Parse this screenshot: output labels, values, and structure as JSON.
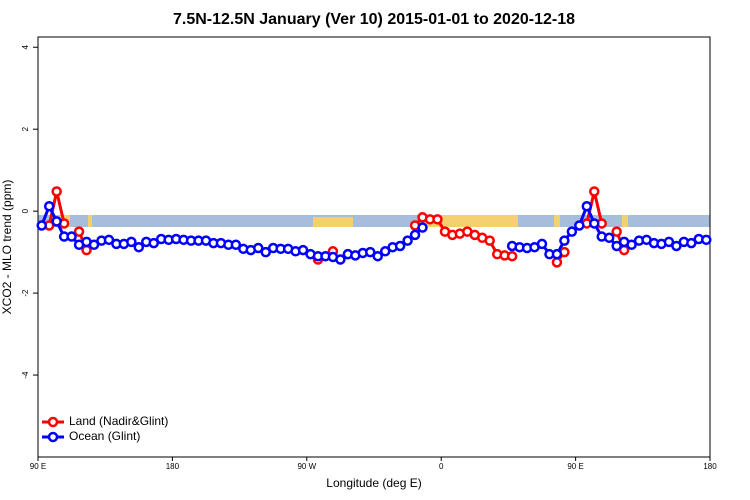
{
  "chart_data": {
    "type": "line",
    "title": "7.5N-12.5N January (Ver 10)   2015-01-01 to 2020-12-18",
    "x_label": "Longitude (deg E)",
    "y_label": "XCO2 - MLO trend (ppm)",
    "x": [
      92.5,
      97.5,
      102.5,
      107.5,
      112.5,
      117.5,
      122.5,
      127.5,
      132.5,
      137.5,
      142.5,
      147.5,
      152.5,
      157.5,
      162.5,
      167.5,
      172.5,
      177.5,
      182.5,
      187.5,
      192.5,
      197.5,
      202.5,
      207.5,
      212.5,
      217.5,
      222.5,
      227.5,
      232.5,
      237.5,
      242.5,
      247.5,
      252.5,
      257.5,
      262.5,
      267.5,
      272.5,
      277.5,
      282.5,
      287.5,
      292.5,
      297.5,
      302.5,
      307.5,
      312.5,
      317.5,
      322.5,
      327.5,
      332.5,
      337.5,
      342.5,
      347.5,
      352.5,
      357.5,
      362.5,
      367.5,
      372.5,
      377.5,
      382.5,
      387.5,
      392.5,
      397.5,
      402.5,
      407.5,
      412.5,
      417.5,
      422.5,
      427.5,
      432.5,
      437.5,
      442.5,
      447.5,
      452.5,
      457.5,
      462.5,
      467.5,
      472.5,
      477.5,
      482.5,
      487.5,
      492.5,
      497.5,
      502.5,
      507.5,
      512.5,
      517.5,
      522.5,
      527.5,
      532.5,
      537.5
    ],
    "series": [
      {
        "name": "Land (Nadir&Glint)",
        "color": "#ff0000",
        "values": [
          null,
          -0.35,
          0.48,
          -0.3,
          null,
          -0.5,
          -0.95,
          null,
          null,
          null,
          null,
          null,
          null,
          null,
          null,
          null,
          null,
          null,
          null,
          null,
          null,
          null,
          null,
          null,
          null,
          null,
          null,
          null,
          null,
          null,
          null,
          null,
          null,
          null,
          null,
          null,
          null,
          -1.18,
          null,
          -0.98,
          null,
          -1.05,
          null,
          null,
          null,
          null,
          null,
          null,
          null,
          null,
          -0.35,
          -0.15,
          -0.2,
          -0.2,
          -0.5,
          -0.58,
          -0.55,
          -0.5,
          -0.58,
          -0.65,
          -0.72,
          -1.05,
          -1.08,
          -1.1,
          null,
          null,
          null,
          null,
          null,
          -1.25,
          -1.0,
          null,
          null,
          -0.3,
          0.48,
          -0.3,
          null,
          -0.5,
          -0.95,
          null,
          null,
          null,
          null,
          null,
          null,
          null,
          null,
          null,
          null,
          null
        ]
      },
      {
        "name": "Ocean (Glint)",
        "color": "#0000ff",
        "values": [
          -0.35,
          0.12,
          -0.25,
          -0.62,
          -0.62,
          -0.82,
          -0.75,
          -0.82,
          -0.72,
          -0.7,
          -0.8,
          -0.8,
          -0.75,
          -0.88,
          -0.75,
          -0.78,
          -0.68,
          -0.7,
          -0.68,
          -0.7,
          -0.72,
          -0.72,
          -0.72,
          -0.78,
          -0.78,
          -0.82,
          -0.82,
          -0.92,
          -0.95,
          -0.9,
          -1.0,
          -0.9,
          -0.92,
          -0.92,
          -0.98,
          -0.95,
          -1.05,
          -1.1,
          -1.1,
          -1.12,
          -1.18,
          -1.05,
          -1.08,
          -1.02,
          -1.0,
          -1.1,
          -0.98,
          -0.88,
          -0.85,
          -0.72,
          -0.58,
          -0.4,
          null,
          null,
          null,
          null,
          null,
          null,
          null,
          null,
          null,
          null,
          null,
          -0.85,
          -0.88,
          -0.9,
          -0.88,
          -0.8,
          -1.05,
          -1.05,
          -0.72,
          -0.5,
          -0.35,
          0.12,
          -0.3,
          -0.62,
          -0.65,
          -0.85,
          -0.75,
          -0.82,
          -0.72,
          -0.7,
          -0.78,
          -0.8,
          -0.75,
          -0.85,
          -0.75,
          -0.78,
          -0.68,
          -0.7
        ]
      }
    ],
    "xlim": [
      90,
      540
    ],
    "xticks": [
      {
        "value": 90,
        "label": "90 E"
      },
      180,
      {
        "value": 270,
        "label": "90 W"
      },
      {
        "value": 360,
        "label": "0"
      },
      {
        "value": 450,
        "label": "90 E"
      },
      {
        "value": 540,
        "label": "180"
      }
    ],
    "ylim": [
      -6,
      4.25
    ],
    "yticks": [
      -4,
      -2,
      0,
      2,
      4
    ],
    "legend": "bottom-left"
  }
}
